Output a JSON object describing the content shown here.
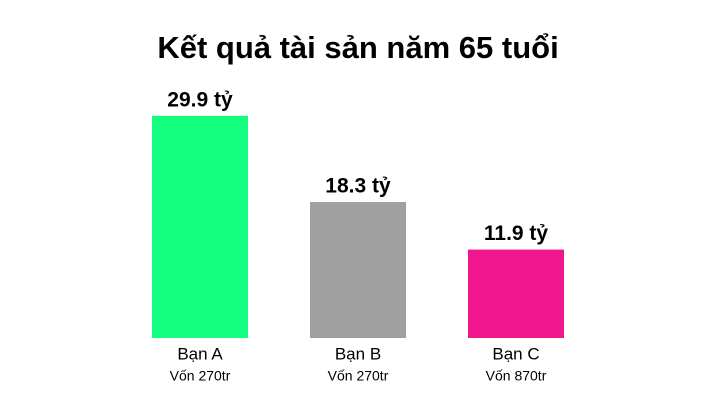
{
  "chart_data": {
    "type": "bar",
    "title": "Kết quả tài sản năm 65 tuổi",
    "categories": [
      "Bạn A",
      "Bạn B",
      "Bạn C"
    ],
    "sublabels": [
      "Vốn 270tr",
      "Vốn 270tr",
      "Vốn 870tr"
    ],
    "values": [
      29.9,
      18.3,
      11.9
    ],
    "value_labels": [
      "29.9 tỷ",
      "18.3 tỷ",
      "11.9 tỷ"
    ],
    "colors": [
      "#14ff80",
      "#a0a0a0",
      "#f0168c"
    ]
  }
}
